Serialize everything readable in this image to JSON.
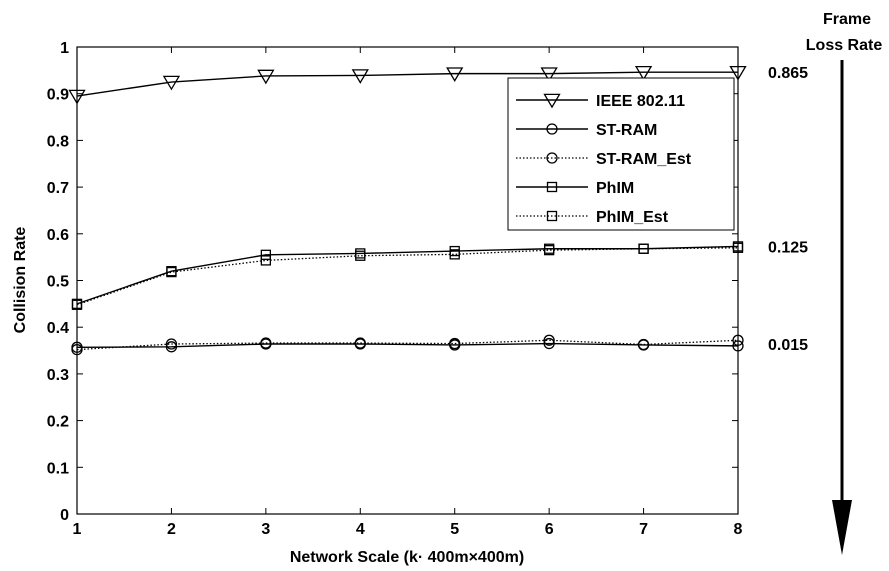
{
  "chart_data": {
    "type": "line",
    "xlabel": "Network Scale (k· 400m×400m)",
    "ylabel": "Collision Rate",
    "x": [
      1,
      2,
      3,
      4,
      5,
      6,
      7,
      8
    ],
    "xlim": [
      1,
      8
    ],
    "ylim": [
      0,
      1
    ],
    "xticks": [
      "1",
      "2",
      "3",
      "4",
      "5",
      "6",
      "7",
      "8"
    ],
    "yticks": [
      "0",
      "0.1",
      "0.2",
      "0.3",
      "0.4",
      "0.5",
      "0.6",
      "0.7",
      "0.8",
      "0.9",
      "1"
    ],
    "grid": false,
    "legend_position": "top-right",
    "series": [
      {
        "name": "IEEE 802.11",
        "marker": "triangle-down",
        "line": "solid",
        "values": [
          0.895,
          0.925,
          0.938,
          0.939,
          0.943,
          0.943,
          0.946,
          0.946
        ]
      },
      {
        "name": "ST-RAM",
        "marker": "circle",
        "line": "solid",
        "values": [
          0.357,
          0.358,
          0.364,
          0.364,
          0.362,
          0.365,
          0.362,
          0.36
        ]
      },
      {
        "name": "ST-RAM_Est",
        "marker": "circle",
        "line": "dotted",
        "values": [
          0.352,
          0.364,
          0.366,
          0.366,
          0.365,
          0.372,
          0.363,
          0.372
        ]
      },
      {
        "name": "PhIM",
        "marker": "square",
        "line": "solid",
        "values": [
          0.45,
          0.52,
          0.555,
          0.558,
          0.563,
          0.568,
          0.568,
          0.573
        ]
      },
      {
        "name": "PhIM_Est",
        "marker": "square",
        "line": "dotted",
        "values": [
          0.448,
          0.518,
          0.543,
          0.553,
          0.556,
          0.565,
          0.568,
          0.57
        ]
      }
    ],
    "annotations": [
      {
        "text": "0.865",
        "y": 0.946
      },
      {
        "text": "0.125",
        "y": 0.573
      },
      {
        "text": "0.015",
        "y": 0.364
      }
    ],
    "side_arrow": {
      "title_line1": "Frame",
      "title_line2": "Loss Rate",
      "direction": "down"
    }
  }
}
